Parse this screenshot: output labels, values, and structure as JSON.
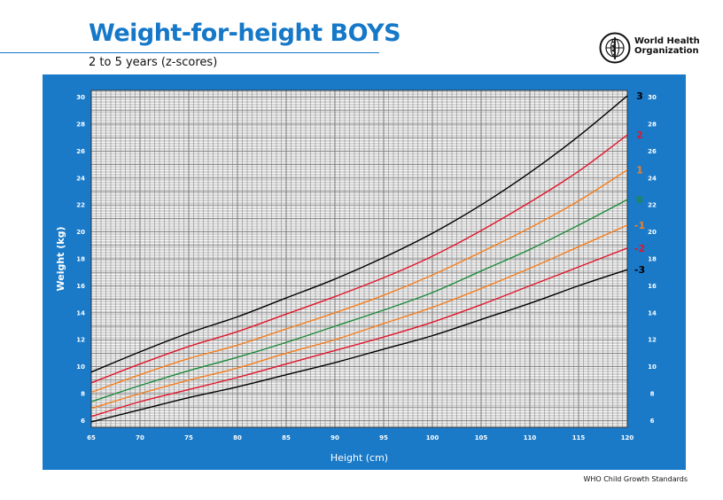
{
  "header": {
    "title": "Weight-for-height BOYS",
    "subtitle": "2 to 5 years (z-scores)",
    "org_line1": "World Health",
    "org_line2": "Organization",
    "org_emblem_icon": "who-emblem-icon"
  },
  "footer": {
    "text": "WHO Child Growth Standards"
  },
  "colors": {
    "frame": "#1a7ac8",
    "grid": "#7a7a7a",
    "black": "#000000",
    "red": "#e0162b",
    "orange": "#f57f20",
    "green": "#1d8a3b"
  },
  "chart_data": {
    "type": "line",
    "title": "Weight-for-height BOYS",
    "subtitle": "2 to 5 years (z-scores)",
    "xlabel": "Height (cm)",
    "ylabel": "Weight (kg)",
    "xlim": [
      65,
      120
    ],
    "ylim": [
      5.5,
      30.5
    ],
    "x_ticks": [
      "65",
      "70",
      "75",
      "80",
      "85",
      "90",
      "95",
      "100",
      "105",
      "110",
      "115",
      "120"
    ],
    "y_ticks": [
      "6",
      "8",
      "10",
      "12",
      "14",
      "16",
      "18",
      "20",
      "22",
      "24",
      "26",
      "28",
      "30"
    ],
    "grid": true,
    "legend": "z-score labels at right end of each curve",
    "x": [
      65,
      70,
      75,
      80,
      85,
      90,
      95,
      100,
      105,
      110,
      115,
      120
    ],
    "series": [
      {
        "name": "3",
        "color": "#000000",
        "values": [
          9.6,
          11.1,
          12.5,
          13.7,
          15.1,
          16.5,
          18.1,
          19.9,
          22.0,
          24.4,
          27.1,
          30.1
        ]
      },
      {
        "name": "2",
        "color": "#e0162b",
        "values": [
          8.8,
          10.2,
          11.5,
          12.6,
          13.9,
          15.2,
          16.6,
          18.2,
          20.1,
          22.2,
          24.5,
          27.2
        ]
      },
      {
        "name": "1",
        "color": "#f57f20",
        "values": [
          8.1,
          9.4,
          10.6,
          11.6,
          12.8,
          14.0,
          15.3,
          16.8,
          18.5,
          20.3,
          22.3,
          24.6
        ]
      },
      {
        "name": "0",
        "color": "#1d8a3b",
        "values": [
          7.4,
          8.6,
          9.7,
          10.7,
          11.8,
          13.0,
          14.2,
          15.5,
          17.1,
          18.7,
          20.5,
          22.4
        ]
      },
      {
        "name": "-1",
        "color": "#f57f20",
        "values": [
          6.9,
          8.0,
          9.0,
          9.9,
          11.0,
          12.0,
          13.2,
          14.4,
          15.8,
          17.3,
          18.9,
          20.5
        ]
      },
      {
        "name": "-2",
        "color": "#e0162b",
        "values": [
          6.3,
          7.4,
          8.3,
          9.2,
          10.2,
          11.2,
          12.2,
          13.3,
          14.6,
          16.0,
          17.4,
          18.8
        ]
      },
      {
        "name": "-3",
        "color": "#000000",
        "values": [
          5.9,
          6.8,
          7.7,
          8.5,
          9.4,
          10.3,
          11.3,
          12.3,
          13.5,
          14.7,
          16.0,
          17.2
        ]
      }
    ]
  }
}
